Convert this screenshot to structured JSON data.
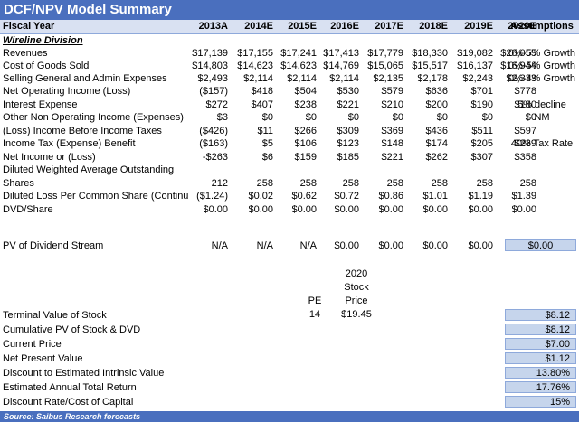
{
  "title": "DCF/NPV Model Summary",
  "header": {
    "label": "Fiscal Year",
    "years": [
      "2013A",
      "2014E",
      "2015E",
      "2016E",
      "2017E",
      "2018E",
      "2019E",
      "2020E"
    ],
    "assumptions": "Assumptions"
  },
  "section": "Wireline Division",
  "rows": [
    {
      "label": "Revenues",
      "values": [
        "$17,139",
        "$17,155",
        "$17,241",
        "$17,413",
        "$17,779",
        "$18,330",
        "$19,082",
        "$20,055"
      ],
      "assumption": "0%-5% Growth"
    },
    {
      "label": "Cost of Goods Sold",
      "values": [
        "$14,803",
        "$14,623",
        "$14,623",
        "$14,769",
        "$15,065",
        "$15,517",
        "$16,137",
        "$16,944"
      ],
      "assumption": "0%-5% Growth"
    },
    {
      "label": "Selling General and Admin Expenses",
      "values": [
        "$2,493",
        "$2,114",
        "$2,114",
        "$2,114",
        "$2,135",
        "$2,178",
        "$2,243",
        "$2,333"
      ],
      "assumption": "0%-4% Growth"
    },
    {
      "label": "Net Operating Income (Loss)",
      "values": [
        "($157)",
        "$418",
        "$504",
        "$530",
        "$579",
        "$636",
        "$701",
        "$778"
      ],
      "assumption": ""
    },
    {
      "label": "Interest Expense",
      "values": [
        "$272",
        "$407",
        "$238",
        "$221",
        "$210",
        "$200",
        "$190",
        "$180"
      ],
      "assumption": "5% decline"
    },
    {
      "label": "Other Non Operating Income (Expenses)",
      "values": [
        "$3",
        "$0",
        "$0",
        "$0",
        "$0",
        "$0",
        "$0",
        "$0"
      ],
      "assumption": "NM"
    },
    {
      "label": "(Loss) Income Before Income Taxes",
      "values": [
        "($426)",
        "$11",
        "$266",
        "$309",
        "$369",
        "$436",
        "$511",
        "$597"
      ],
      "assumption": ""
    },
    {
      "label": "Income Tax (Expense) Benefit",
      "values": [
        "($163)",
        "$5",
        "$106",
        "$123",
        "$148",
        "$174",
        "$205",
        "$239"
      ],
      "assumption": "40% Tax Rate"
    },
    {
      "label": "Net Income or (Loss)",
      "values": [
        "-$263",
        "$6",
        "$159",
        "$185",
        "$221",
        "$262",
        "$307",
        "$358"
      ],
      "assumption": ""
    },
    {
      "label": "Diluted Weighted Average Outstanding",
      "values": [
        "",
        "",
        "",
        "",
        "",
        "",
        "",
        ""
      ],
      "assumption": ""
    },
    {
      "label": "Shares",
      "values": [
        "212",
        "258",
        "258",
        "258",
        "258",
        "258",
        "258",
        "258"
      ],
      "assumption": ""
    },
    {
      "label": "Diluted Loss Per Common Share (Continu",
      "values": [
        "($1.24)",
        "$0.02",
        "$0.62",
        "$0.72",
        "$0.86",
        "$1.01",
        "$1.19",
        "$1.39"
      ],
      "assumption": ""
    },
    {
      "label": "DVD/Share",
      "values": [
        "$0.00",
        "$0.00",
        "$0.00",
        "$0.00",
        "$0.00",
        "$0.00",
        "$0.00",
        "$0.00"
      ],
      "assumption": ""
    }
  ],
  "pv_row": {
    "label": "PV of Dividend Stream",
    "values": [
      "N/A",
      "N/A",
      "N/A",
      "$0.00",
      "$0.00",
      "$0.00",
      "$0.00",
      "$0.00"
    ],
    "assumption": "$0.00"
  },
  "terminal": {
    "pe_label": "PE",
    "pe_value": "14",
    "price_label_1": "2020",
    "price_label_2": "Stock",
    "price_label_3": "Price",
    "price_value": "$19.45"
  },
  "summary": [
    {
      "label": "Terminal Value of Stock",
      "value": "$8.12"
    },
    {
      "label": "Cumulative PV of Stock & DVD",
      "value": "$8.12"
    },
    {
      "label": "Current Price",
      "value": "$7.00"
    },
    {
      "label": "Net Present Value",
      "value": "$1.12"
    },
    {
      "label": "Discount to Estimated Intrinsic Value",
      "value": "13.80%"
    },
    {
      "label": "Estimated Annual Total Return",
      "value": "17.76%"
    },
    {
      "label": "Discount Rate/Cost of Capital",
      "value": "15%"
    }
  ],
  "footer": "Source: Saibus Research forecasts"
}
